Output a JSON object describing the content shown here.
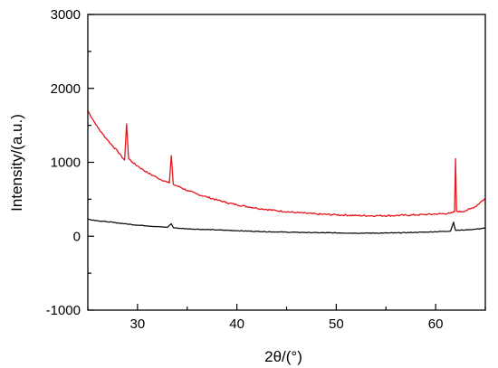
{
  "chart_data": {
    "type": "line",
    "xlabel": "2θ/(°)",
    "ylabel": "Intensity/(a.u.)",
    "xlim": [
      25,
      65
    ],
    "ylim": [
      -1000,
      3000
    ],
    "x_ticks": [
      30,
      40,
      50,
      60
    ],
    "y_ticks": [
      -1000,
      0,
      1000,
      2000,
      3000
    ],
    "grid": false,
    "legend": "none",
    "series": [
      {
        "color": "#e8141c",
        "points": [
          [
            25.0,
            1700
          ],
          [
            25.5,
            1580
          ],
          [
            26.0,
            1470
          ],
          [
            26.5,
            1380
          ],
          [
            27.0,
            1300
          ],
          [
            27.5,
            1220
          ],
          [
            28.0,
            1150
          ],
          [
            28.4,
            1080
          ],
          [
            28.7,
            1030
          ],
          [
            28.9,
            1520
          ],
          [
            29.1,
            1050
          ],
          [
            29.5,
            1000
          ],
          [
            30.0,
            950
          ],
          [
            31.0,
            860
          ],
          [
            32.0,
            790
          ],
          [
            33.0,
            730
          ],
          [
            33.2,
            720
          ],
          [
            33.4,
            1090
          ],
          [
            33.6,
            700
          ],
          [
            34.0,
            680
          ],
          [
            35.0,
            620
          ],
          [
            36.0,
            570
          ],
          [
            37.0,
            530
          ],
          [
            38.0,
            490
          ],
          [
            39.0,
            455
          ],
          [
            40.0,
            425
          ],
          [
            42.0,
            380
          ],
          [
            44.0,
            345
          ],
          [
            46.0,
            320
          ],
          [
            48.0,
            300
          ],
          [
            50.0,
            290
          ],
          [
            52.0,
            280
          ],
          [
            54.0,
            278
          ],
          [
            56.0,
            280
          ],
          [
            58.0,
            288
          ],
          [
            60.0,
            300
          ],
          [
            61.5,
            310
          ],
          [
            61.9,
            330
          ],
          [
            62.0,
            1050
          ],
          [
            62.1,
            340
          ],
          [
            62.5,
            330
          ],
          [
            63.0,
            345
          ],
          [
            63.5,
            370
          ],
          [
            64.0,
            400
          ],
          [
            64.5,
            460
          ],
          [
            65.0,
            510
          ]
        ]
      },
      {
        "color": "#111111",
        "points": [
          [
            25.0,
            230
          ],
          [
            26.0,
            210
          ],
          [
            27.0,
            195
          ],
          [
            28.0,
            180
          ],
          [
            29.0,
            165
          ],
          [
            30.0,
            150
          ],
          [
            31.0,
            140
          ],
          [
            32.0,
            130
          ],
          [
            33.0,
            120
          ],
          [
            33.4,
            170
          ],
          [
            33.6,
            115
          ],
          [
            34.0,
            110
          ],
          [
            35.0,
            100
          ],
          [
            36.0,
            95
          ],
          [
            38.0,
            85
          ],
          [
            40.0,
            75
          ],
          [
            42.0,
            65
          ],
          [
            44.0,
            58
          ],
          [
            46.0,
            52
          ],
          [
            48.0,
            48
          ],
          [
            50.0,
            45
          ],
          [
            52.0,
            42
          ],
          [
            54.0,
            42
          ],
          [
            56.0,
            45
          ],
          [
            58.0,
            52
          ],
          [
            60.0,
            60
          ],
          [
            61.5,
            70
          ],
          [
            61.8,
            190
          ],
          [
            62.0,
            80
          ],
          [
            63.0,
            85
          ],
          [
            64.0,
            95
          ],
          [
            65.0,
            110
          ]
        ]
      }
    ]
  }
}
